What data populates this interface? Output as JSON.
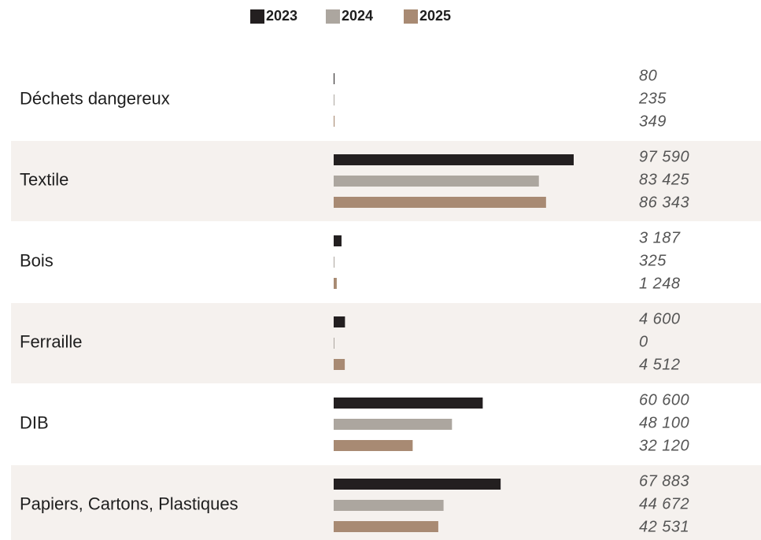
{
  "chart_data": {
    "type": "bar",
    "orientation": "horizontal",
    "categories": [
      "Déchets dangereux",
      "Textile",
      "Bois",
      "Ferraille",
      "DIB",
      "Papiers, Cartons, Plastiques"
    ],
    "series": [
      {
        "name": "2023",
        "color": "#231f20",
        "values": [
          80,
          97590,
          3187,
          4600,
          60600,
          67883
        ],
        "value_labels": [
          "80",
          "97 590",
          "3 187",
          "4 600",
          "60 600",
          "67 883"
        ]
      },
      {
        "name": "2024",
        "color": "#aca69f",
        "values": [
          235,
          83425,
          325,
          0,
          48100,
          44672
        ],
        "value_labels": [
          "235",
          "83 425",
          "325",
          "0",
          "48 100",
          "44 672"
        ]
      },
      {
        "name": "2025",
        "color": "#a88a73",
        "values": [
          349,
          86343,
          1248,
          4512,
          32120,
          42531
        ],
        "value_labels": [
          "349",
          "86 343",
          "1 248",
          "4 512",
          "32 120",
          "42 531"
        ]
      }
    ],
    "row_shading": "#f5f1ee"
  }
}
